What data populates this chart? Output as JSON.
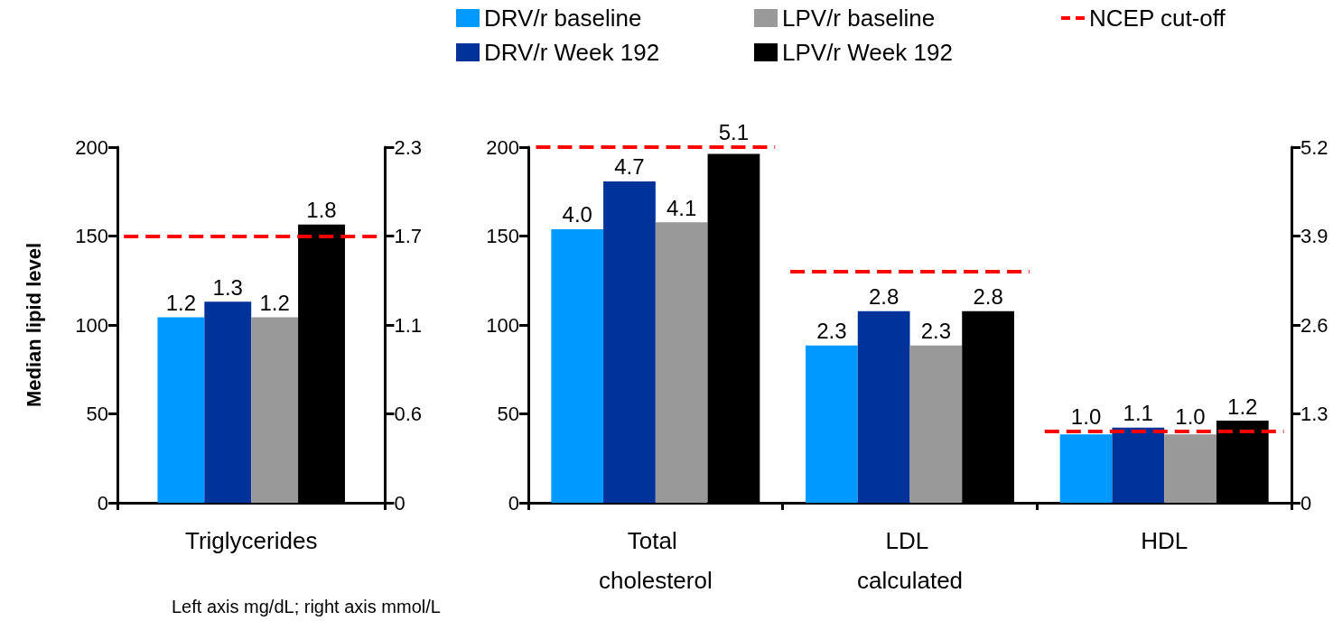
{
  "chart_data": [
    {
      "type": "bar",
      "ylabel": "Median lipid level",
      "categories": [
        "Triglycerides"
      ],
      "series": [
        {
          "color": "#0099ff",
          "values": [
            1.2
          ],
          "value_labels": [
            "1.2"
          ],
          "axis": "y2"
        },
        {
          "color": "#003399",
          "values": [
            1.3
          ],
          "value_labels": [
            "1.3"
          ],
          "axis": "y2"
        },
        {
          "color": "#999999",
          "values": [
            1.2
          ],
          "value_labels": [
            "1.2"
          ],
          "axis": "y2"
        },
        {
          "color": "#000000",
          "values": [
            1.8
          ],
          "value_labels": [
            "1.8"
          ],
          "axis": "y2"
        }
      ],
      "ylim": [
        0,
        200
      ],
      "yticks": [
        0,
        50,
        100,
        150,
        200
      ],
      "y2lim": [
        0,
        2.3
      ],
      "y2ticks": [
        0,
        {
          "value": 0.575,
          "label": "0.6"
        },
        {
          "value": 1.15,
          "label": "1.1"
        },
        {
          "value": 1.725,
          "label": "1.7"
        },
        2.3
      ],
      "ref_lines": [
        {
          "axis": "y",
          "value": 150,
          "color": "#ff0000",
          "line_style": "dashed"
        }
      ],
      "annotations": [
        "Left axis mg/dL; right axis mmol/L"
      ]
    },
    {
      "type": "bar",
      "categories": [
        "Total cholesterol",
        "LDL calculated",
        "HDL"
      ],
      "series": [
        {
          "name": "DRV/r baseline",
          "color": "#0099ff",
          "values": [
            4.0,
            2.3,
            1.0
          ],
          "value_labels": [
            "4.0",
            "2.3",
            "1.0"
          ],
          "axis": "y2"
        },
        {
          "name": "DRV/r Week 192",
          "color": "#003399",
          "values": [
            4.7,
            2.8,
            1.1
          ],
          "value_labels": [
            "4.7",
            "2.8",
            "1.1"
          ],
          "axis": "y2"
        },
        {
          "name": "LPV/r baseline",
          "color": "#999999",
          "values": [
            4.1,
            2.3,
            1.0
          ],
          "value_labels": [
            "4.1",
            "2.3",
            "1.0"
          ],
          "axis": "y2"
        },
        {
          "name": "LPV/r Week 192",
          "color": "#000000",
          "values": [
            5.1,
            2.8,
            1.2
          ],
          "value_labels": [
            "5.1",
            "2.8",
            "1.2"
          ],
          "axis": "y2"
        }
      ],
      "ylim": [
        0,
        200
      ],
      "yticks": [
        0,
        50,
        100,
        150,
        200
      ],
      "y2lim": [
        0,
        5.2
      ],
      "y2ticks": [
        0,
        1.3,
        2.6,
        3.9,
        5.2
      ],
      "ref_lines": [
        {
          "axis": "y",
          "value": 200,
          "label": "NCEP cut-off",
          "color": "#ff0000",
          "line_style": "dashed"
        },
        {
          "axis": "y",
          "value": 130,
          "color": "#ff0000",
          "line_style": "dashed"
        },
        {
          "axis": "y",
          "value": 40,
          "color": "#ff0000",
          "line_style": "dashed"
        }
      ],
      "legend": "top"
    }
  ]
}
